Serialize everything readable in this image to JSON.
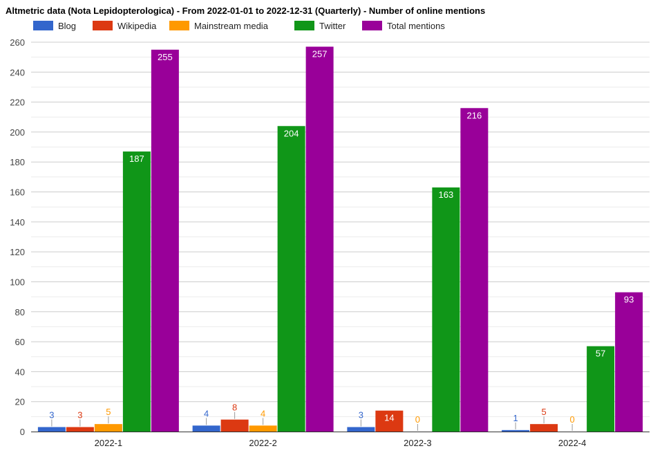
{
  "chart_data": {
    "type": "bar",
    "title": "Altmetric data (Nota Lepidopterologica) - From 2022-01-01 to 2022-12-31 (Quarterly) - Number of online mentions",
    "categories": [
      "2022-1",
      "2022-2",
      "2022-3",
      "2022-4"
    ],
    "series": [
      {
        "name": "Blog",
        "color": "#3366cc",
        "values": [
          3,
          4,
          3,
          1
        ]
      },
      {
        "name": "Wikipedia",
        "color": "#dc3912",
        "values": [
          3,
          8,
          14,
          5
        ]
      },
      {
        "name": "Mainstream media",
        "color": "#ff9900",
        "values": [
          5,
          4,
          0,
          0
        ]
      },
      {
        "name": "Twitter",
        "color": "#109618",
        "values": [
          187,
          204,
          163,
          57
        ]
      },
      {
        "name": "Total mentions",
        "color": "#990099",
        "values": [
          255,
          257,
          216,
          93
        ]
      }
    ],
    "ylim": [
      0,
      260
    ],
    "yticks": [
      0,
      20,
      40,
      60,
      80,
      100,
      120,
      140,
      160,
      180,
      200,
      220,
      240,
      260
    ],
    "grid": true,
    "legend_position": "top-left"
  }
}
